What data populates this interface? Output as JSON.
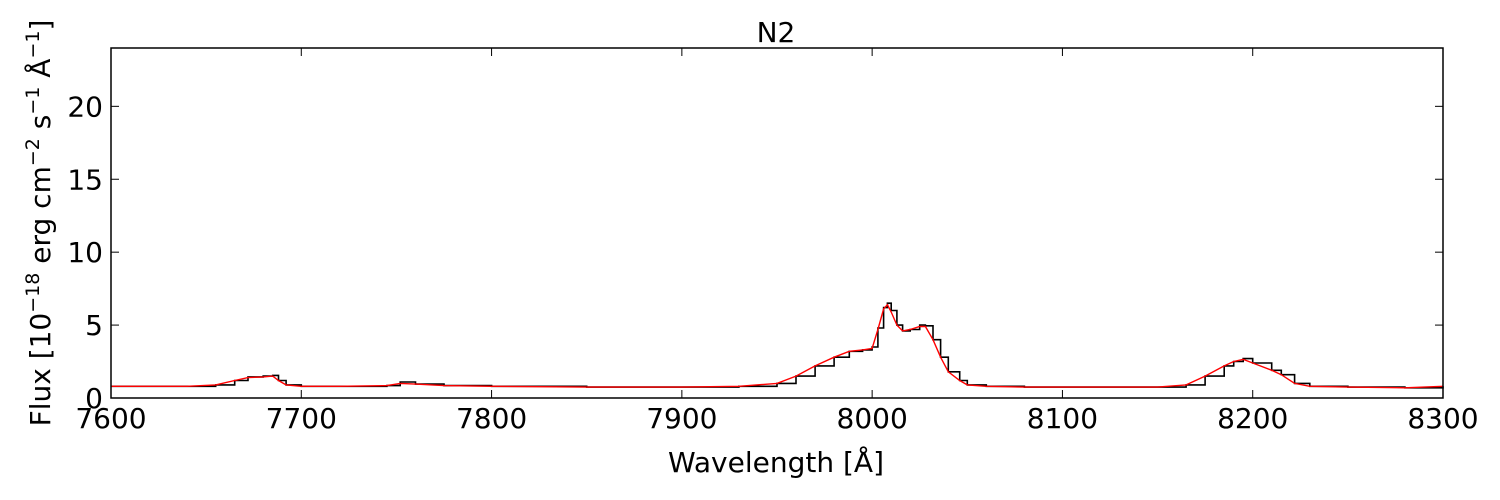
{
  "chart_data": {
    "type": "line",
    "title": "N2",
    "xlabel": "Wavelength [Å]",
    "ylabel": {
      "prefix": "Flux [10",
      "exp1": "−18",
      "mid1": " erg cm",
      "exp2": "−2",
      "mid2": " s",
      "exp3": "−1",
      "mid3": " Å",
      "exp4": "−1",
      "suffix": "]"
    },
    "xlim": [
      7600,
      8300
    ],
    "ylim": [
      0,
      24
    ],
    "xticks": [
      7600,
      7700,
      7800,
      7900,
      8000,
      8100,
      8200,
      8300
    ],
    "xtick_labels": [
      "7600",
      "7700",
      "7800",
      "7900",
      "8000",
      "8100",
      "8200",
      "8300"
    ],
    "yticks": [
      0,
      5,
      10,
      15,
      20
    ],
    "ytick_labels": [
      "0",
      "5",
      "10",
      "15",
      "20"
    ],
    "grid": false,
    "series": [
      {
        "color": "#000000",
        "style": "steps",
        "x": [
          7600,
          7620,
          7640,
          7655,
          7665,
          7672,
          7680,
          7685,
          7688,
          7692,
          7700,
          7720,
          7745,
          7752,
          7760,
          7775,
          7800,
          7850,
          7900,
          7930,
          7950,
          7960,
          7970,
          7980,
          7988,
          7995,
          8000,
          8003,
          8006,
          8008,
          8010,
          8013,
          8016,
          8020,
          8025,
          8028,
          8032,
          8036,
          8040,
          8046,
          8050,
          8060,
          8080,
          8100,
          8150,
          8165,
          8175,
          8185,
          8190,
          8195,
          8200,
          8210,
          8215,
          8222,
          8230,
          8250,
          8280,
          8300
        ],
        "y": [
          0.8,
          0.8,
          0.8,
          0.9,
          1.2,
          1.45,
          1.5,
          1.55,
          1.2,
          0.9,
          0.8,
          0.8,
          0.85,
          1.1,
          0.95,
          0.85,
          0.8,
          0.75,
          0.75,
          0.8,
          1.0,
          1.5,
          2.2,
          2.8,
          3.2,
          3.3,
          3.5,
          4.8,
          6.2,
          6.5,
          6.0,
          5.0,
          4.6,
          4.7,
          5.0,
          4.95,
          4.0,
          2.8,
          1.8,
          1.2,
          0.9,
          0.8,
          0.75,
          0.75,
          0.75,
          0.9,
          1.5,
          2.2,
          2.5,
          2.7,
          2.4,
          1.9,
          1.6,
          1.0,
          0.8,
          0.75,
          0.7,
          0.8
        ]
      },
      {
        "color": "#ff0000",
        "style": "line",
        "x": [
          7600,
          7620,
          7640,
          7655,
          7665,
          7672,
          7680,
          7685,
          7688,
          7692,
          7700,
          7720,
          7745,
          7752,
          7760,
          7775,
          7800,
          7850,
          7900,
          7930,
          7950,
          7960,
          7970,
          7980,
          7988,
          7995,
          8000,
          8003,
          8006,
          8008,
          8010,
          8013,
          8016,
          8020,
          8025,
          8028,
          8032,
          8036,
          8040,
          8046,
          8050,
          8060,
          8080,
          8100,
          8150,
          8165,
          8175,
          8185,
          8190,
          8195,
          8200,
          8210,
          8215,
          8222,
          8230,
          8250,
          8280,
          8300
        ],
        "y": [
          0.8,
          0.8,
          0.8,
          0.9,
          1.2,
          1.4,
          1.45,
          1.5,
          1.2,
          0.9,
          0.8,
          0.8,
          0.85,
          1.0,
          0.95,
          0.85,
          0.8,
          0.75,
          0.75,
          0.8,
          1.0,
          1.5,
          2.2,
          2.8,
          3.2,
          3.3,
          3.4,
          4.7,
          6.1,
          6.4,
          5.9,
          5.0,
          4.6,
          4.7,
          4.9,
          4.9,
          4.0,
          2.8,
          1.8,
          1.2,
          0.9,
          0.8,
          0.75,
          0.75,
          0.75,
          0.9,
          1.5,
          2.2,
          2.5,
          2.65,
          2.4,
          1.9,
          1.6,
          1.0,
          0.8,
          0.75,
          0.7,
          0.8
        ]
      }
    ]
  }
}
